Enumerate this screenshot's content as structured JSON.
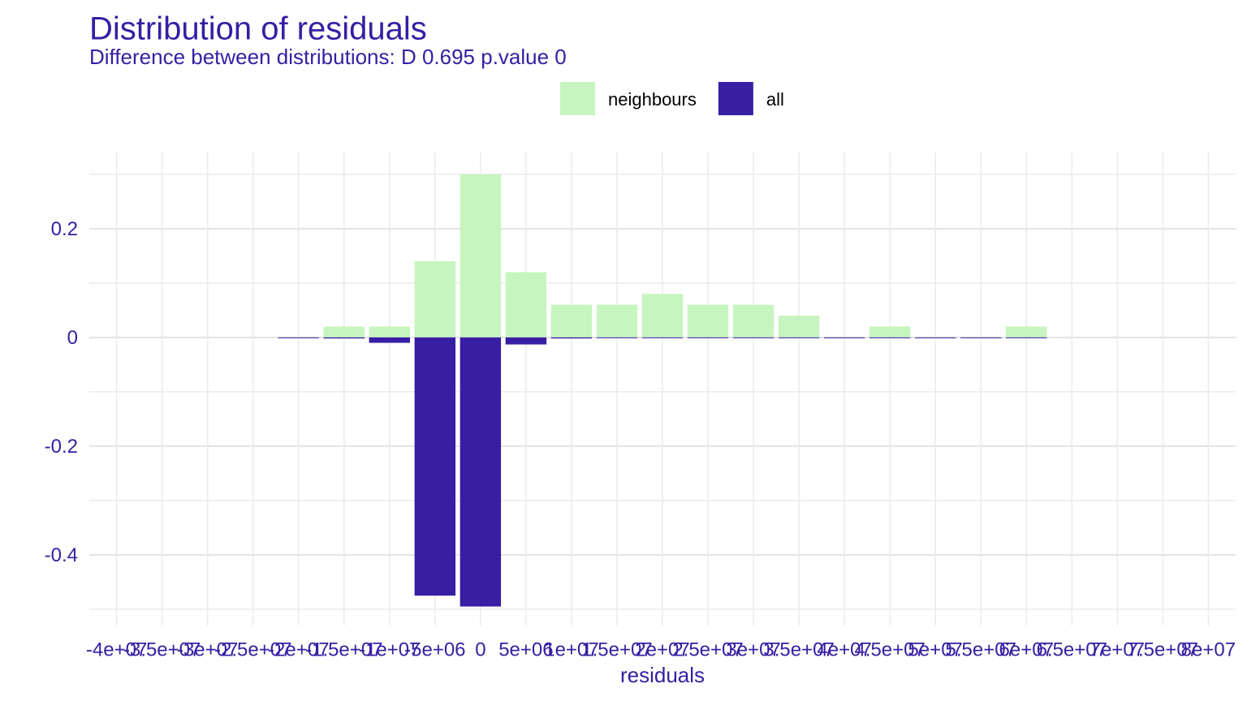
{
  "chart_data": {
    "type": "bar",
    "title": "Distribution of residuals",
    "subtitle": "Difference between distributions: D 0.695 p.value 0",
    "x_label": "residuals",
    "x": [
      -20000000,
      -15000000,
      -10000000,
      -5000000,
      0,
      5000000,
      10000000,
      15000000,
      20000000,
      25000000,
      30000000,
      35000000,
      40000000,
      45000000,
      50000000,
      55000000,
      60000000
    ],
    "series": [
      {
        "name": "neighbours",
        "color": "#c7f5bf",
        "values": [
          0,
          0.02,
          0.02,
          0.14,
          0.3,
          0.12,
          0.06,
          0.06,
          0.08,
          0.06,
          0.06,
          0.04,
          0,
          0.02,
          0,
          0,
          0.02
        ]
      },
      {
        "name": "all",
        "color": "#371ea3",
        "values": [
          -0.001,
          -0.002,
          -0.01,
          -0.475,
          -0.495,
          -0.013,
          -0.002,
          -0.001,
          -0.001,
          -0.001,
          0,
          0,
          0,
          0,
          0,
          0,
          0
        ]
      }
    ],
    "xlim": [
      -43000000,
      83000000
    ],
    "ylim": [
      -0.53,
      0.34
    ],
    "xticks": [
      {
        "value": -40000000,
        "label": "-4e+07"
      },
      {
        "value": -35000000,
        "label": "-3.5e+07"
      },
      {
        "value": -30000000,
        "label": "-3e+07"
      },
      {
        "value": -25000000,
        "label": "-2.5e+07"
      },
      {
        "value": -20000000,
        "label": "-2e+07"
      },
      {
        "value": -15000000,
        "label": "-1.5e+07"
      },
      {
        "value": -10000000,
        "label": "-1e+07"
      },
      {
        "value": -5000000,
        "label": "-5e+06"
      },
      0,
      {
        "value": 5000000,
        "label": "5e+06"
      },
      {
        "value": 10000000,
        "label": "1e+07"
      },
      {
        "value": 15000000,
        "label": "1.5e+07"
      },
      {
        "value": 20000000,
        "label": "2e+07"
      },
      {
        "value": 25000000,
        "label": "2.5e+07"
      },
      {
        "value": 30000000,
        "label": "3e+07"
      },
      {
        "value": 35000000,
        "label": "3.5e+07"
      },
      {
        "value": 40000000,
        "label": "4e+07"
      },
      {
        "value": 45000000,
        "label": "4.5e+07"
      },
      {
        "value": 50000000,
        "label": "5e+07"
      },
      {
        "value": 55000000,
        "label": "5.5e+07"
      },
      {
        "value": 60000000,
        "label": "6e+07"
      },
      {
        "value": 65000000,
        "label": "6.5e+07"
      },
      {
        "value": 70000000,
        "label": "7e+07"
      },
      {
        "value": 75000000,
        "label": "7.5e+07"
      },
      {
        "value": 80000000,
        "label": "8e+07"
      }
    ],
    "yticks": [
      -0.4,
      -0.2,
      0.0,
      0.2
    ],
    "y_minor_ticks": [
      -0.5,
      -0.3,
      -0.1,
      0.1,
      0.3
    ],
    "grid": true,
    "legend_position": "top"
  }
}
